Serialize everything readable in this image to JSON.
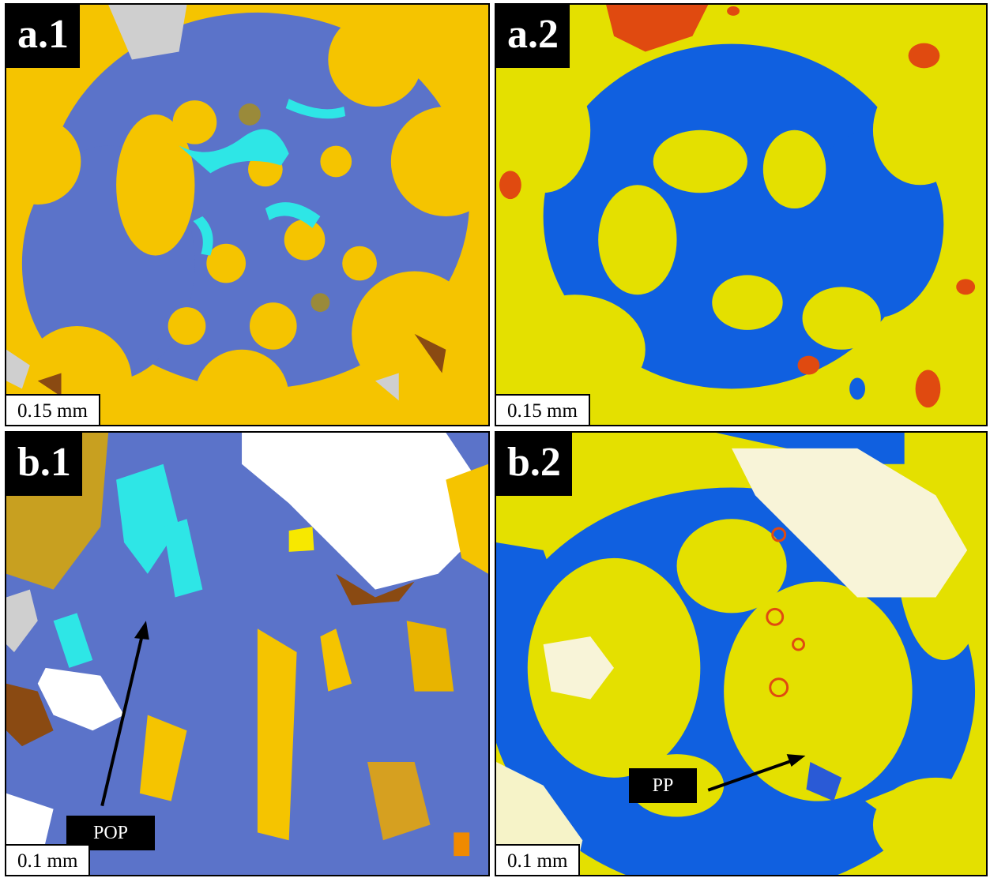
{
  "panels": {
    "a1": {
      "tag": "a.1",
      "scale": "0.15   mm",
      "palette": "multi"
    },
    "a2": {
      "tag": "a.2",
      "scale": "0.15 mm",
      "palette": "yb"
    },
    "b1": {
      "tag": "b.1",
      "scale": "0.1  mm",
      "palette": "multi",
      "callout": "POP"
    },
    "b2": {
      "tag": "b.2",
      "scale": "0.1  mm",
      "palette": "yb",
      "callout": "PP"
    }
  },
  "colors": {
    "gold": "#f5c400",
    "slate_blue": "#5b73c9",
    "cyan": "#2ee6e6",
    "brown": "#8a4a12",
    "olive": "#9a8a3a",
    "light_gray": "#cfcfcf",
    "white": "#ffffff",
    "yellow": "#e4e000",
    "royal_blue": "#1060e0",
    "orange_red": "#e04a10"
  }
}
